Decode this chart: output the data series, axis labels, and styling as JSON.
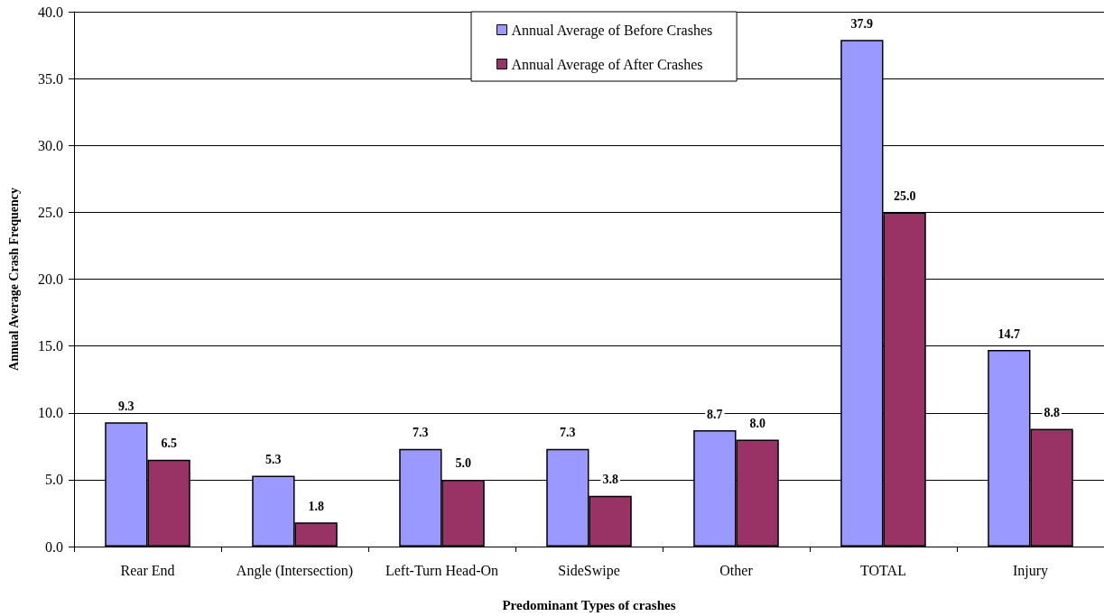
{
  "chart_data": {
    "type": "bar",
    "xlabel": "Predominant Types of crashes",
    "ylabel": "Annual Average Crash Frequency",
    "categories": [
      "Rear End",
      "Angle (Intersection)",
      "Left-Turn Head-On",
      "SideSwipe",
      "Other",
      "TOTAL",
      "Injury"
    ],
    "series": [
      {
        "name": "Annual Average of Before Crashes",
        "color": "#9999ff",
        "values": [
          9.3,
          5.3,
          7.3,
          7.3,
          8.7,
          37.9,
          14.7
        ],
        "value_labels": [
          "9.3",
          "5.3",
          "7.3",
          "7.3",
          "8.7",
          "37.9",
          "14.7"
        ]
      },
      {
        "name": "Annual Average of After Crashes",
        "color": "#993366",
        "values": [
          6.5,
          1.8,
          5.0,
          3.8,
          8.0,
          25.0,
          8.8
        ],
        "value_labels": [
          "6.5",
          "1.8",
          "5.0",
          "3.8",
          "8.0",
          "25.0",
          "8.8"
        ]
      }
    ],
    "ylim": [
      0,
      40
    ],
    "yticks": [
      {
        "value": 0,
        "label": "0.0"
      },
      {
        "value": 5,
        "label": "5.0"
      },
      {
        "value": 10,
        "label": "10.0"
      },
      {
        "value": 15,
        "label": "15.0"
      },
      {
        "value": 20,
        "label": "20.0"
      },
      {
        "value": 25,
        "label": "25.0"
      },
      {
        "value": 30,
        "label": "30.0"
      },
      {
        "value": 35,
        "label": "35.0"
      },
      {
        "value": 40,
        "label": "40.0"
      }
    ],
    "grid": "y",
    "legend": "top"
  }
}
